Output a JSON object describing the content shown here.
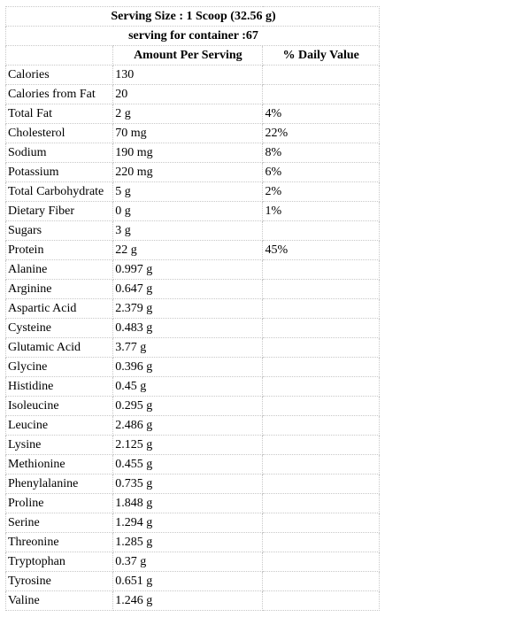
{
  "header": {
    "serving_size": "Serving Size : 1 Scoop (32.56 g)",
    "servings_per_container": "serving for container :67"
  },
  "columns": {
    "amount": "Amount Per Serving",
    "daily_value": "% Daily Value"
  },
  "rows": [
    {
      "name": "Calories",
      "amount": "130",
      "dv": ""
    },
    {
      "name": "Calories from Fat",
      "amount": "20",
      "dv": ""
    },
    {
      "name": "Total Fat",
      "amount": "2 g",
      "dv": "4%"
    },
    {
      "name": "Cholesterol",
      "amount": "70 mg",
      "dv": "22%"
    },
    {
      "name": "Sodium",
      "amount": "190 mg",
      "dv": "8%"
    },
    {
      "name": "Potassium",
      "amount": "220 mg",
      "dv": "6%"
    },
    {
      "name": "Total Carbohydrate",
      "amount": "5 g",
      "dv": "2%"
    },
    {
      "name": "Dietary Fiber",
      "amount": "0 g",
      "dv": "1%"
    },
    {
      "name": "Sugars",
      "amount": "3 g",
      "dv": ""
    },
    {
      "name": "Protein",
      "amount": "22 g",
      "dv": "45%"
    },
    {
      "name": "Alanine",
      "amount": "0.997 g",
      "dv": ""
    },
    {
      "name": "Arginine",
      "amount": "0.647 g",
      "dv": ""
    },
    {
      "name": "Aspartic Acid",
      "amount": "2.379 g",
      "dv": ""
    },
    {
      "name": "Cysteine",
      "amount": "0.483 g",
      "dv": ""
    },
    {
      "name": "Glutamic Acid",
      "amount": "3.77 g",
      "dv": ""
    },
    {
      "name": "Glycine",
      "amount": "0.396 g",
      "dv": ""
    },
    {
      "name": "Histidine",
      "amount": "0.45 g",
      "dv": ""
    },
    {
      "name": "Isoleucine",
      "amount": "0.295 g",
      "dv": ""
    },
    {
      "name": "Leucine",
      "amount": "2.486 g",
      "dv": ""
    },
    {
      "name": "Lysine",
      "amount": "2.125 g",
      "dv": ""
    },
    {
      "name": "Methionine",
      "amount": "0.455 g",
      "dv": ""
    },
    {
      "name": "Phenylalanine",
      "amount": "0.735 g",
      "dv": ""
    },
    {
      "name": "Proline",
      "amount": "1.848 g",
      "dv": ""
    },
    {
      "name": "Serine",
      "amount": "1.294 g",
      "dv": ""
    },
    {
      "name": "Threonine",
      "amount": "1.285 g",
      "dv": ""
    },
    {
      "name": "Tryptophan",
      "amount": "0.37 g",
      "dv": ""
    },
    {
      "name": "Tyrosine",
      "amount": "0.651 g",
      "dv": ""
    },
    {
      "name": "Valine",
      "amount": "1.246 g",
      "dv": ""
    }
  ]
}
